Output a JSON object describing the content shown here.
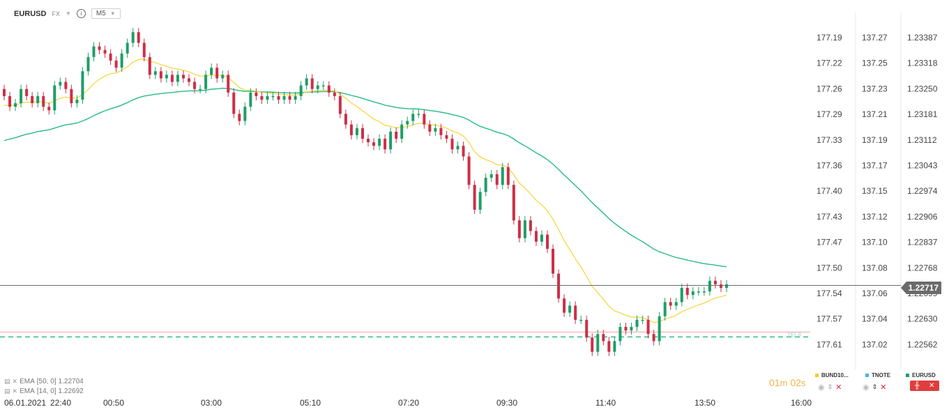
{
  "header": {
    "symbol": "EURUSD",
    "market": "FX",
    "timeframe": "M5"
  },
  "indicators": [
    {
      "label": "EMA",
      "params": "[50, 0]",
      "value": "1.22704"
    },
    {
      "label": "EMA",
      "params": "[14, 0]",
      "value": "1.22692"
    }
  ],
  "timer": {
    "minutes": "01",
    "m": "m",
    "seconds": "02",
    "s": "s"
  },
  "current_price_badge": "1.22717",
  "fib_label": "161.8",
  "legend": [
    {
      "name": "BUND10...",
      "color": "#f5cc2b"
    },
    {
      "name": "TNOTE",
      "color": "#4ab3e8"
    },
    {
      "name": "EURUSD",
      "color": "#1e9e67"
    }
  ],
  "colors": {
    "up": "#1e9e67",
    "down": "#cc2f45",
    "ema50": "#27b88e",
    "ema14": "#f6d438",
    "price_line": "#6b6b6b",
    "fib_solid": "#f0a0a0",
    "fib_dashed": "#58c7a5"
  },
  "chart_data": {
    "type": "candlestick",
    "x_labels": [
      "06.01.2021",
      "22:40",
      "00:50",
      "03:00",
      "05:10",
      "07:20",
      "09:30",
      "11:40",
      "13:50",
      "16:00"
    ],
    "axes": {
      "bund10": {
        "ticks": [
          "177.19",
          "177.22",
          "177.26",
          "177.29",
          "177.33",
          "177.36",
          "177.40",
          "177.43",
          "177.47",
          "177.50",
          "177.54",
          "177.57",
          "177.61"
        ]
      },
      "tnote": {
        "ticks": [
          "137.27",
          "137.25",
          "137.23",
          "137.21",
          "137.19",
          "137.17",
          "137.15",
          "137.12",
          "137.10",
          "137.08",
          "137.06",
          "137.04",
          "137.02"
        ]
      },
      "eurusd": {
        "ticks": [
          "1.23387",
          "1.23318",
          "1.23250",
          "1.23181",
          "1.23112",
          "1.23043",
          "1.22974",
          "1.22906",
          "1.22837",
          "1.22768",
          "1.22699",
          "1.22630",
          "1.22562"
        ],
        "range": [
          1.225,
          1.2345
        ]
      }
    },
    "current_price": 1.22717,
    "fib_161_8_level": 1.22572,
    "series": [
      {
        "name": "EURUSD",
        "close": [
          1.2325,
          1.2322,
          1.2323,
          1.2327,
          1.2325,
          1.2323,
          1.2325,
          1.2322,
          1.2321,
          1.2328,
          1.2329,
          1.2327,
          1.2323,
          1.2324,
          1.2332,
          1.2336,
          1.2339,
          1.2338,
          1.2337,
          1.2335,
          1.2333,
          1.2337,
          1.234,
          1.2343,
          1.234,
          1.2336,
          1.2331,
          1.2332,
          1.233,
          1.2331,
          1.2329,
          1.2331,
          1.233,
          1.2329,
          1.2327,
          1.2327,
          1.2331,
          1.2333,
          1.233,
          1.2331,
          1.2326,
          1.232,
          1.2318,
          1.2322,
          1.2326,
          1.2325,
          1.2324,
          1.2325,
          1.2325,
          1.2324,
          1.2325,
          1.2324,
          1.2325,
          1.2328,
          1.233,
          1.2327,
          1.2328,
          1.2328,
          1.2326,
          1.2325,
          1.232,
          1.2317,
          1.2314,
          1.2316,
          1.2313,
          1.2312,
          1.2311,
          1.2313,
          1.231,
          1.2315,
          1.2313,
          1.2317,
          1.2318,
          1.232,
          1.232,
          1.2317,
          1.2315,
          1.2316,
          1.2314,
          1.2313,
          1.231,
          1.2311,
          1.2308,
          1.23,
          1.2293,
          1.2298,
          1.2302,
          1.2303,
          1.23,
          1.2305,
          1.23,
          1.229,
          1.2285,
          1.229,
          1.2287,
          1.2284,
          1.2286,
          1.2282,
          1.2275,
          1.2268,
          1.2264,
          1.2266,
          1.2262,
          1.2262,
          1.2257,
          1.2253,
          1.2258,
          1.2256,
          1.2253,
          1.2256,
          1.226,
          1.2259,
          1.226,
          1.2262,
          1.2262,
          1.2258,
          1.2256,
          1.2263,
          1.2267,
          1.2266,
          1.2267,
          1.2271,
          1.2269,
          1.227,
          1.227,
          1.227,
          1.2273,
          1.2272,
          1.2271,
          1.2272
        ]
      },
      {
        "name": "EMA 50",
        "value": 1.22704
      },
      {
        "name": "EMA 14",
        "value": 1.22692
      }
    ]
  }
}
